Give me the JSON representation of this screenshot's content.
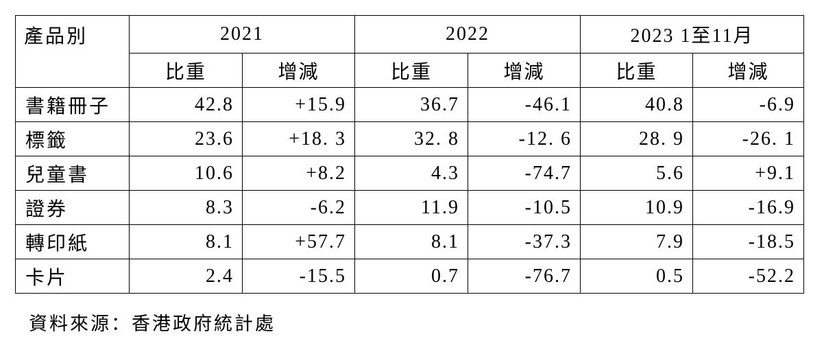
{
  "table": {
    "header": {
      "category": "產品別",
      "years": [
        "2021",
        "2022",
        "2023 1至11月"
      ],
      "subheaders": [
        "比重",
        "增減",
        "比重",
        "增減",
        "比重",
        "增減"
      ]
    },
    "rows": [
      [
        "書籍冊子",
        "42.8",
        "+15.9",
        "36.7",
        "-46.1",
        "40.8",
        "-6.9"
      ],
      [
        "標籤",
        "23.6",
        "+18. 3",
        "32. 8",
        "-12. 6",
        "28. 9",
        "-26. 1"
      ],
      [
        "兒童書",
        "10.6",
        "+8.2",
        "4.3",
        "-74.7",
        "5.6",
        "+9.1"
      ],
      [
        "證券",
        "8.3",
        "-6.2",
        "11.9",
        "-10.5",
        "10.9",
        "-16.9"
      ],
      [
        "轉印紙",
        "8.1",
        "+57.7",
        "8.1",
        "-37.3",
        "7.9",
        "-18.5"
      ],
      [
        "卡片",
        "2.4",
        "-15.5",
        "0.7",
        "-76.7",
        "0.5",
        "-52.2"
      ]
    ]
  },
  "source": "資料來源：香港政府統計處"
}
